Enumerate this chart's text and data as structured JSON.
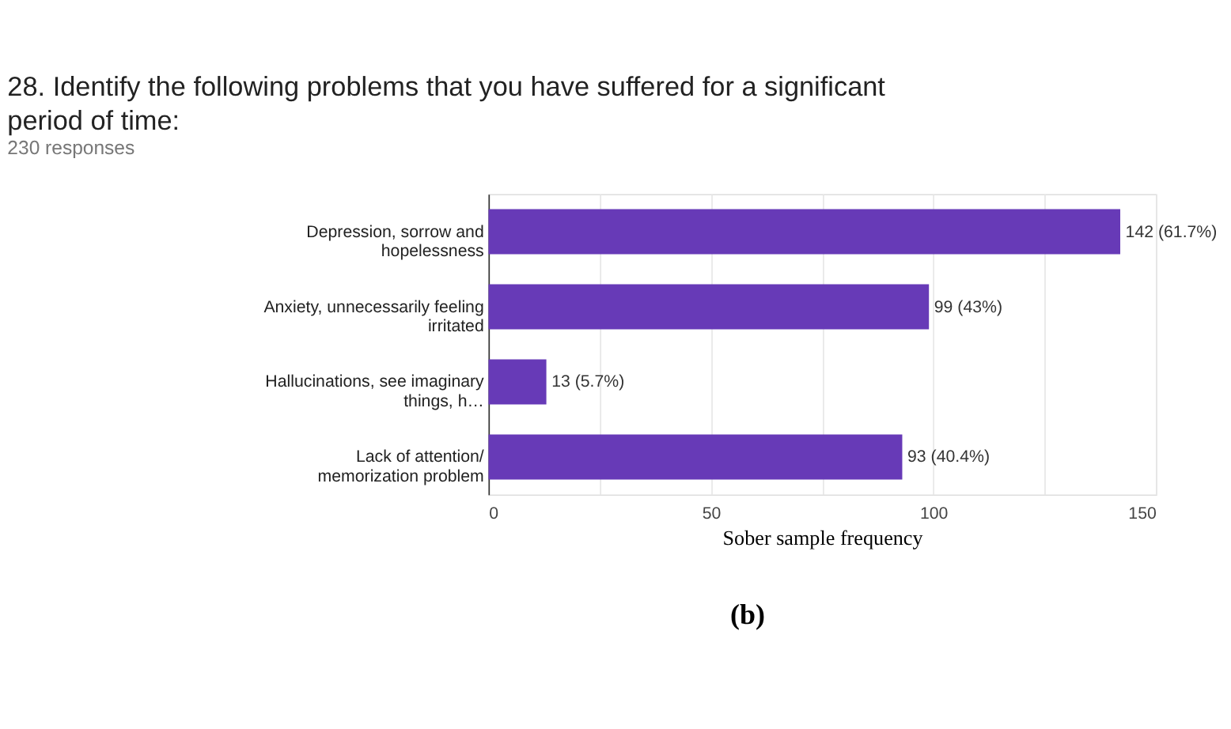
{
  "chart_data": {
    "type": "bar",
    "orientation": "horizontal",
    "title": "28. Identify the following problems that you have suffered for a significant period of time:",
    "subtitle": "230 responses",
    "xlabel": "Sober sample frequency",
    "categories": [
      "Depression, sorrow and hopelessness",
      "Anxiety, unnecessarily feeling irritated",
      "Hallucinations, see imaginary things, h…",
      "Lack of attention/ memorization problem"
    ],
    "values": [
      142,
      99,
      13,
      93
    ],
    "color": "#673ab7",
    "value_labels": [
      "142 (61.7%)",
      "99 (43%)",
      "13 (5.7%)",
      "93 (40.4%)"
    ],
    "xlim": [
      0,
      150
    ],
    "xticks": [
      0,
      {
        "value": 25,
        "label": null
      },
      50,
      {
        "value": 75,
        "label": null
      },
      100,
      {
        "value": 125,
        "label": null
      },
      150
    ],
    "grid": "x",
    "annotations": [
      "(b)"
    ]
  }
}
